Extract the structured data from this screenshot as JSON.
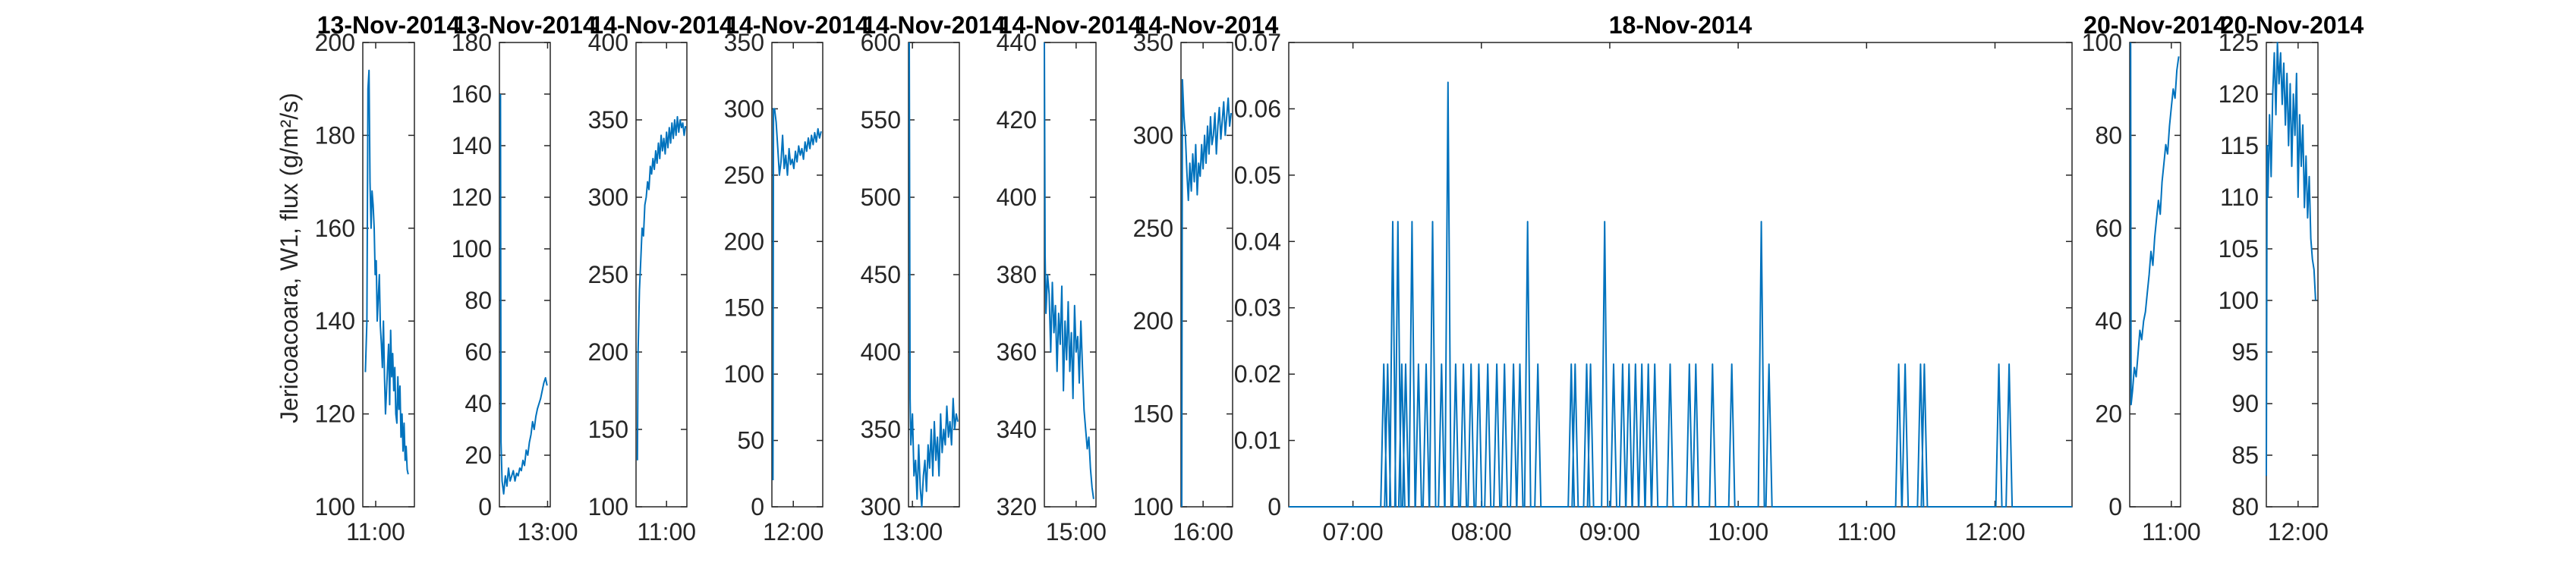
{
  "chart_data": {
    "type": "line",
    "ylabel": "Jericoacoara, W1, flux (g/m²/s)",
    "color": "#0072BD",
    "panels": [
      {
        "title": "13-Nov-2014",
        "ylim": [
          100,
          200
        ],
        "yticks": [
          "100",
          "120",
          "140",
          "160",
          "180",
          "200"
        ],
        "xticks": [
          "11:00"
        ],
        "xlim": [
          10.75,
          11.75
        ],
        "x": [
          10.8,
          10.83,
          10.85,
          10.87,
          10.89,
          10.91,
          10.93,
          10.95,
          10.97,
          10.99,
          11.01,
          11.03,
          11.05,
          11.07,
          11.09,
          11.11,
          11.13,
          11.15,
          11.17,
          11.19,
          11.21,
          11.23,
          11.25,
          11.27,
          11.29,
          11.31,
          11.33,
          11.35,
          11.37,
          11.39,
          11.41,
          11.43,
          11.45,
          11.47,
          11.49,
          11.51,
          11.53,
          11.55,
          11.57,
          11.59,
          11.61,
          11.63
        ],
        "y": [
          129,
          140,
          190,
          194,
          170,
          160,
          168,
          165,
          160,
          150,
          153,
          140,
          145,
          150,
          139,
          135,
          130,
          140,
          128,
          120,
          125,
          130,
          135,
          122,
          138,
          128,
          133,
          125,
          130,
          120,
          118,
          128,
          121,
          126,
          115,
          120,
          112,
          118,
          110,
          113,
          108,
          107
        ]
      },
      {
        "title": "13-Nov-2014",
        "ylim": [
          0,
          180
        ],
        "yticks": [
          "0",
          "20",
          "40",
          "60",
          "80",
          "100",
          "120",
          "140",
          "160",
          "180"
        ],
        "xticks": [
          "13:00"
        ],
        "xlim": [
          12.1,
          13.05
        ],
        "x": [
          12.12,
          12.13,
          12.15,
          12.18,
          12.21,
          12.24,
          12.27,
          12.3,
          12.33,
          12.36,
          12.39,
          12.42,
          12.45,
          12.48,
          12.51,
          12.54,
          12.57,
          12.6,
          12.63,
          12.66,
          12.69,
          12.72,
          12.75,
          12.78,
          12.81,
          12.84,
          12.87,
          12.9,
          12.93,
          12.96,
          12.99
        ],
        "y": [
          160,
          25,
          10,
          5,
          12,
          8,
          15,
          10,
          12,
          14,
          10,
          13,
          12,
          15,
          14,
          18,
          16,
          22,
          20,
          25,
          28,
          33,
          30,
          35,
          38,
          40,
          42,
          45,
          48,
          50,
          47
        ]
      },
      {
        "title": "14-Nov-2014",
        "ylim": [
          100,
          400
        ],
        "yticks": [
          "100",
          "150",
          "200",
          "250",
          "300",
          "350",
          "400"
        ],
        "xticks": [
          "11:00"
        ],
        "xlim": [
          10.55,
          11.3
        ],
        "x": [
          10.57,
          10.58,
          10.6,
          10.62,
          10.64,
          10.66,
          10.68,
          10.7,
          10.72,
          10.74,
          10.76,
          10.78,
          10.8,
          10.82,
          10.84,
          10.86,
          10.88,
          10.9,
          10.92,
          10.94,
          10.96,
          10.98,
          11.0,
          11.02,
          11.04,
          11.06,
          11.08,
          11.1,
          11.12,
          11.14,
          11.16,
          11.18,
          11.2,
          11.22,
          11.24,
          11.26,
          11.28
        ],
        "y": [
          130,
          200,
          240,
          260,
          280,
          275,
          295,
          300,
          310,
          305,
          320,
          315,
          325,
          318,
          330,
          322,
          335,
          325,
          340,
          330,
          338,
          328,
          342,
          332,
          345,
          335,
          348,
          338,
          350,
          340,
          352,
          342,
          350,
          345,
          348,
          340,
          346
        ]
      },
      {
        "title": "14-Nov-2014",
        "ylim": [
          0,
          350
        ],
        "yticks": [
          "0",
          "50",
          "100",
          "150",
          "200",
          "250",
          "300",
          "350"
        ],
        "xticks": [
          "12:00"
        ],
        "xlim": [
          11.6,
          12.55
        ],
        "x": [
          11.62,
          11.63,
          11.65,
          11.68,
          11.71,
          11.74,
          11.77,
          11.8,
          11.83,
          11.86,
          11.89,
          11.92,
          11.95,
          11.98,
          12.01,
          12.04,
          12.07,
          12.1,
          12.13,
          12.16,
          12.19,
          12.22,
          12.25,
          12.28,
          12.31,
          12.34,
          12.37,
          12.4,
          12.43,
          12.46,
          12.49,
          12.52
        ],
        "y": [
          20,
          300,
          300,
          290,
          270,
          250,
          260,
          280,
          255,
          265,
          250,
          270,
          258,
          262,
          255,
          268,
          260,
          272,
          265,
          270,
          262,
          275,
          268,
          278,
          270,
          280,
          273,
          282,
          275,
          285,
          278,
          283
        ]
      },
      {
        "title": "14-Nov-2014",
        "ylim": [
          300,
          600
        ],
        "yticks": [
          "300",
          "350",
          "400",
          "450",
          "500",
          "550",
          "600"
        ],
        "xticks": [
          "13:00"
        ],
        "xlim": [
          12.95,
          13.6
        ],
        "x": [
          12.96,
          12.97,
          12.98,
          13.0,
          13.02,
          13.04,
          13.06,
          13.08,
          13.1,
          13.12,
          13.14,
          13.16,
          13.18,
          13.2,
          13.22,
          13.24,
          13.26,
          13.28,
          13.3,
          13.32,
          13.34,
          13.36,
          13.38,
          13.4,
          13.42,
          13.44,
          13.46,
          13.48,
          13.5,
          13.52,
          13.54,
          13.56,
          13.58
        ],
        "y": [
          600,
          370,
          340,
          360,
          320,
          330,
          305,
          340,
          312,
          300,
          320,
          330,
          310,
          340,
          325,
          350,
          320,
          355,
          330,
          345,
          320,
          360,
          335,
          350,
          340,
          365,
          345,
          355,
          340,
          370,
          350,
          360,
          355
        ]
      },
      {
        "title": "14-Nov-2014",
        "ylim": [
          320,
          440
        ],
        "yticks": [
          "320",
          "340",
          "360",
          "380",
          "400",
          "420",
          "440"
        ],
        "xticks": [
          "15:00"
        ],
        "xlim": [
          14.6,
          15.25
        ],
        "x": [
          14.6,
          14.61,
          14.62,
          14.64,
          14.66,
          14.68,
          14.7,
          14.72,
          14.74,
          14.76,
          14.78,
          14.8,
          14.82,
          14.84,
          14.86,
          14.88,
          14.9,
          14.92,
          14.94,
          14.96,
          14.98,
          15.0,
          15.02,
          15.04,
          15.06,
          15.08,
          15.1,
          15.12,
          15.14,
          15.16,
          15.18,
          15.2,
          15.22
        ],
        "y": [
          440,
          385,
          370,
          380,
          375,
          360,
          378,
          365,
          372,
          355,
          370,
          362,
          377,
          350,
          368,
          358,
          373,
          355,
          365,
          348,
          372,
          360,
          364,
          352,
          368,
          356,
          345,
          340,
          335,
          338,
          330,
          325,
          322
        ]
      },
      {
        "title": "14-Nov-2014",
        "ylim": [
          100,
          350
        ],
        "yticks": [
          "100",
          "150",
          "200",
          "250",
          "300",
          "350"
        ],
        "xticks": [
          "16:00"
        ],
        "xlim": [
          15.7,
          16.4
        ],
        "x": [
          15.71,
          15.72,
          15.74,
          15.76,
          15.78,
          15.8,
          15.82,
          15.84,
          15.86,
          15.88,
          15.9,
          15.92,
          15.94,
          15.96,
          15.98,
          16.0,
          16.02,
          16.04,
          16.06,
          16.08,
          16.1,
          16.12,
          16.14,
          16.16,
          16.18,
          16.2,
          16.22,
          16.24,
          16.26,
          16.28,
          16.3,
          16.32,
          16.34,
          16.36,
          16.38
        ],
        "y": [
          100,
          330,
          310,
          300,
          280,
          265,
          285,
          270,
          290,
          275,
          295,
          268,
          285,
          278,
          295,
          282,
          300,
          285,
          305,
          290,
          310,
          295,
          300,
          312,
          290,
          305,
          315,
          298,
          308,
          318,
          300,
          310,
          320,
          305,
          312
        ]
      },
      {
        "title": "18-Nov-2014",
        "ylim": [
          0,
          0.07
        ],
        "yticks": [
          "0",
          "0.01",
          "0.02",
          "0.03",
          "0.04",
          "0.05",
          "0.06",
          "0.07"
        ],
        "xticks": [
          "07:00",
          "08:00",
          "09:00",
          "10:00",
          "11:00",
          "12:00"
        ],
        "xlim": [
          6.5,
          12.6
        ],
        "spikes": [
          [
            7.24,
            0.0215
          ],
          [
            7.27,
            0.0215
          ],
          [
            7.31,
            0.043
          ],
          [
            7.35,
            0.043
          ],
          [
            7.38,
            0.0215
          ],
          [
            7.41,
            0.0215
          ],
          [
            7.46,
            0.043
          ],
          [
            7.51,
            0.0215
          ],
          [
            7.57,
            0.0215
          ],
          [
            7.62,
            0.043
          ],
          [
            7.69,
            0.0215
          ],
          [
            7.74,
            0.064
          ],
          [
            7.8,
            0.0215
          ],
          [
            7.86,
            0.0215
          ],
          [
            7.92,
            0.0215
          ],
          [
            7.98,
            0.0215
          ],
          [
            8.05,
            0.0215
          ],
          [
            8.12,
            0.0215
          ],
          [
            8.18,
            0.0215
          ],
          [
            8.25,
            0.0215
          ],
          [
            8.3,
            0.0215
          ],
          [
            8.36,
            0.043
          ],
          [
            8.44,
            0.0215
          ],
          [
            8.7,
            0.0215
          ],
          [
            8.73,
            0.0215
          ],
          [
            8.82,
            0.0215
          ],
          [
            8.85,
            0.0215
          ],
          [
            8.96,
            0.043
          ],
          [
            9.03,
            0.0215
          ],
          [
            9.1,
            0.0215
          ],
          [
            9.15,
            0.0215
          ],
          [
            9.2,
            0.0215
          ],
          [
            9.25,
            0.0215
          ],
          [
            9.3,
            0.0215
          ],
          [
            9.35,
            0.0215
          ],
          [
            9.47,
            0.0215
          ],
          [
            9.62,
            0.0215
          ],
          [
            9.67,
            0.0215
          ],
          [
            9.8,
            0.0215
          ],
          [
            9.95,
            0.0215
          ],
          [
            10.18,
            0.043
          ],
          [
            10.24,
            0.0215
          ],
          [
            11.25,
            0.0215
          ],
          [
            11.3,
            0.0215
          ],
          [
            11.42,
            0.0215
          ],
          [
            11.45,
            0.0215
          ],
          [
            12.03,
            0.0215
          ],
          [
            12.11,
            0.0215
          ]
        ]
      },
      {
        "title": "20-Nov-2014",
        "ylim": [
          0,
          100
        ],
        "yticks": [
          "0",
          "20",
          "40",
          "60",
          "80",
          "100"
        ],
        "xticks": [
          "11:00"
        ],
        "xlim": [
          10.55,
          11.1
        ],
        "x": [
          10.56,
          10.565,
          10.58,
          10.6,
          10.62,
          10.64,
          10.66,
          10.68,
          10.7,
          10.72,
          10.74,
          10.76,
          10.78,
          10.8,
          10.82,
          10.84,
          10.86,
          10.88,
          10.9,
          10.92,
          10.94,
          10.96,
          10.98,
          11.0,
          11.02,
          11.04,
          11.06,
          11.08
        ],
        "y": [
          100,
          22,
          25,
          30,
          28,
          33,
          38,
          36,
          40,
          42,
          46,
          50,
          55,
          52,
          58,
          62,
          66,
          63,
          70,
          74,
          78,
          76,
          82,
          86,
          90,
          88,
          94,
          97
        ]
      },
      {
        "title": "20-Nov-2014",
        "ylim": [
          80,
          125
        ],
        "yticks": [
          "80",
          "85",
          "90",
          "95",
          "100",
          "105",
          "110",
          "115",
          "120",
          "125"
        ],
        "xticks": [
          "12:00"
        ],
        "xlim": [
          11.6,
          12.25
        ],
        "x": [
          11.6,
          11.61,
          11.62,
          11.64,
          11.66,
          11.68,
          11.7,
          11.72,
          11.74,
          11.76,
          11.78,
          11.8,
          11.82,
          11.84,
          11.86,
          11.88,
          11.9,
          11.92,
          11.94,
          11.96,
          11.98,
          12.0,
          12.02,
          12.04,
          12.06,
          12.08,
          12.1,
          12.12,
          12.14,
          12.16,
          12.18,
          12.2,
          12.22
        ],
        "y": [
          83,
          115,
          110,
          118,
          112,
          120,
          124,
          118,
          125,
          121,
          124,
          119,
          123,
          117,
          122,
          115,
          121,
          113,
          120,
          116,
          122,
          110,
          118,
          113,
          117,
          109,
          114,
          108,
          112,
          106,
          104,
          103,
          100
        ]
      }
    ]
  }
}
